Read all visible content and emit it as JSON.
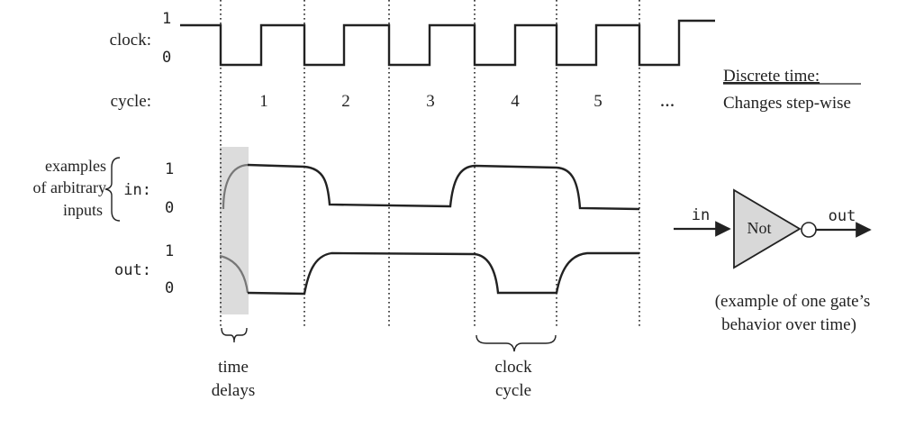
{
  "clock": {
    "label": "clock:",
    "high": "1",
    "low": "0"
  },
  "cycle": {
    "label": "cycle:",
    "numbers": [
      "1",
      "2",
      "3",
      "4",
      "5"
    ],
    "ellipsis": "..."
  },
  "inputs_note": [
    "examples",
    "of arbitrary",
    "inputs"
  ],
  "in_signal": {
    "label": "in:",
    "high": "1",
    "low": "0"
  },
  "out_signal": {
    "label": "out:",
    "high": "1",
    "low": "0"
  },
  "discrete_time": {
    "title": "Discrete time:",
    "subtitle": "Changes step-wise"
  },
  "gate": {
    "input": "in",
    "name": "Not",
    "output": "out"
  },
  "gate_note": [
    "(example of one gate’s",
    "behavior over time)"
  ],
  "time_delays": [
    "time",
    "delays"
  ],
  "clock_cycle": [
    "clock",
    "cycle"
  ]
}
